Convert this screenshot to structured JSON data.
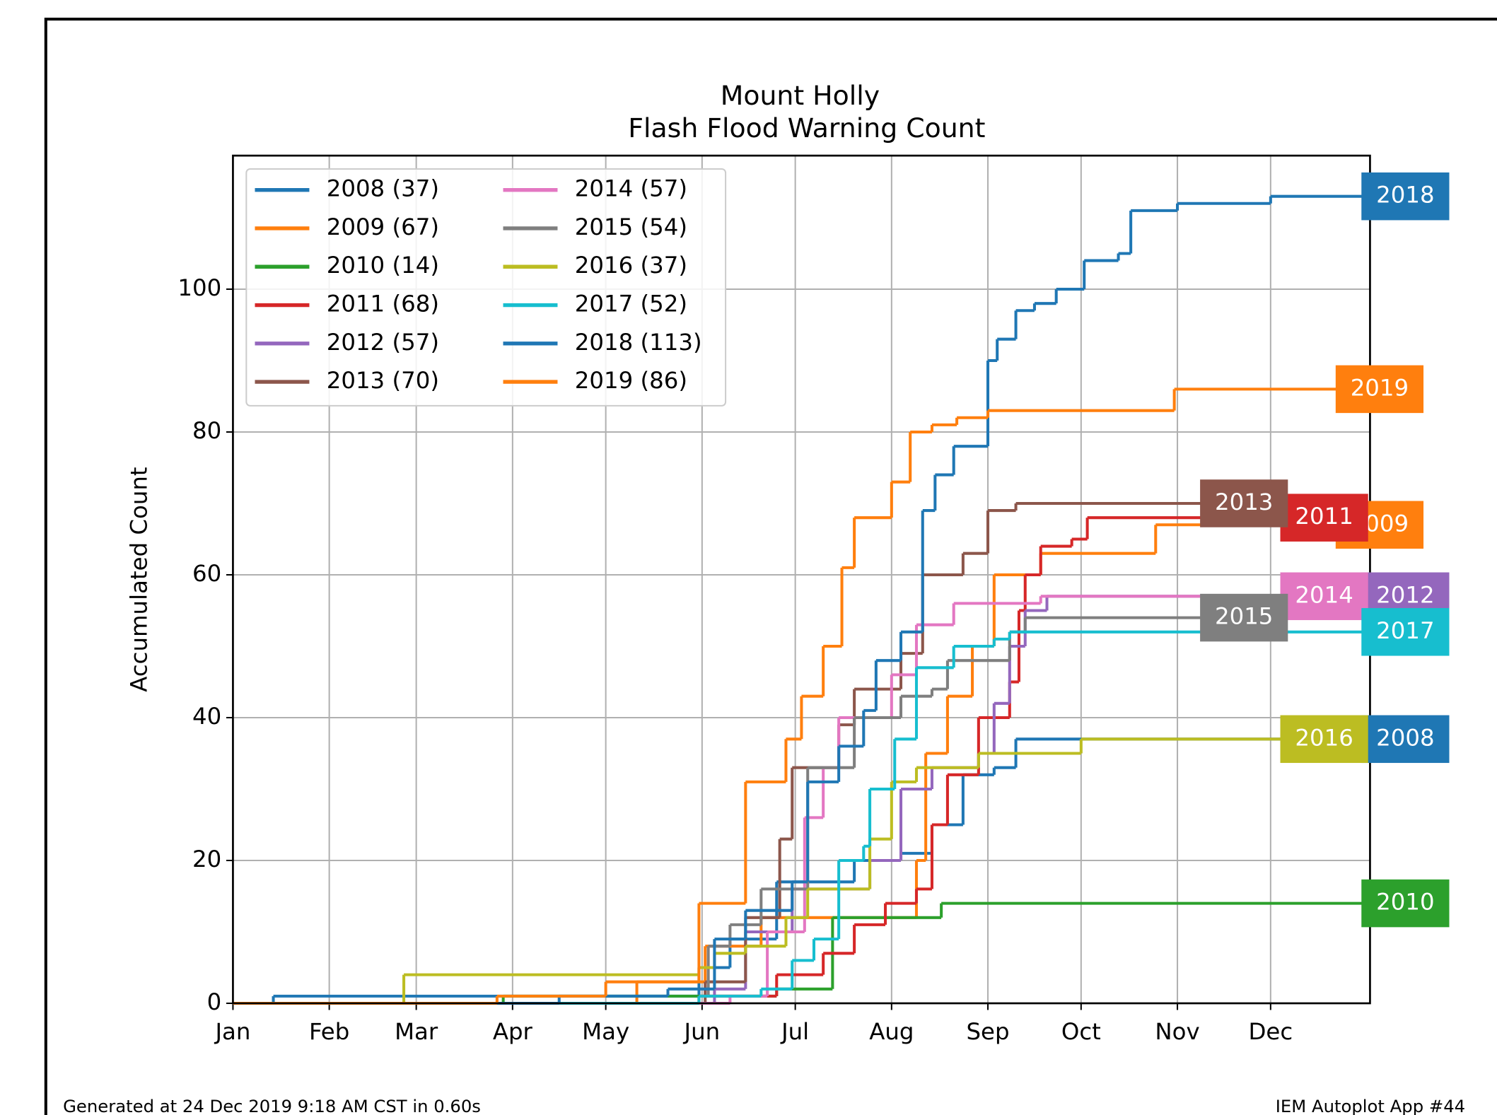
{
  "chart_data": {
    "type": "line",
    "step": true,
    "title": "Mount Holly",
    "subtitle": "Flash Flood Warning Count",
    "ylabel": "Accumulated Count",
    "footer_left": "Generated at 24 Dec 2019 9:18 AM CST in 0.60s",
    "footer_right": "IEM Autoplot App #44",
    "xlim": [
      0,
      366
    ],
    "ylim": [
      0,
      118.7
    ],
    "grid": true,
    "legend": "upper left",
    "xticks": [
      {
        "value": 0,
        "label": "Jan"
      },
      {
        "value": 31,
        "label": "Feb"
      },
      {
        "value": 59,
        "label": "Mar"
      },
      {
        "value": 90,
        "label": "Apr"
      },
      {
        "value": 120,
        "label": "May"
      },
      {
        "value": 151,
        "label": "Jun"
      },
      {
        "value": 181,
        "label": "Jul"
      },
      {
        "value": 212,
        "label": "Aug"
      },
      {
        "value": 243,
        "label": "Sep"
      },
      {
        "value": 273,
        "label": "Oct"
      },
      {
        "value": 304,
        "label": "Nov"
      },
      {
        "value": 334,
        "label": "Dec"
      }
    ],
    "yticks": [
      0,
      20,
      40,
      60,
      80,
      100
    ],
    "series": [
      {
        "name": "2008 (37)",
        "end_label": "2008",
        "color": "#1f77b4",
        "x": [
          13,
          150,
          160,
          175,
          200,
          215,
          225,
          235,
          245,
          252
        ],
        "values": [
          1,
          5,
          9,
          17,
          20,
          21,
          25,
          32,
          33,
          37
        ]
      },
      {
        "name": "2009 (67)",
        "end_label": "2009",
        "color": "#ff7f0e",
        "x": [
          130,
          152,
          170,
          200,
          220,
          223,
          230,
          238,
          245,
          260,
          297
        ],
        "values": [
          3,
          8,
          12,
          12,
          20,
          35,
          43,
          50,
          60,
          63,
          67
        ]
      },
      {
        "name": "2010 (14)",
        "end_label": "2010",
        "color": "#2ca02c",
        "x": [
          87,
          155,
          175,
          193,
          228
        ],
        "values": [
          1,
          1,
          2,
          12,
          14
        ]
      },
      {
        "name": "2011 (68)",
        "end_label": "2011",
        "color": "#d62728",
        "x": [
          150,
          175,
          190,
          200,
          210,
          220,
          225,
          230,
          240,
          250,
          253,
          255,
          260,
          270,
          275
        ],
        "values": [
          1,
          4,
          7,
          11,
          14,
          16,
          25,
          32,
          40,
          45,
          55,
          60,
          64,
          65,
          68
        ]
      },
      {
        "name": "2012 (57)",
        "end_label": "2012",
        "color": "#9467bd",
        "x": [
          155,
          165,
          180,
          205,
          215,
          225,
          240,
          245,
          250,
          255,
          262
        ],
        "values": [
          2,
          10,
          16,
          20,
          30,
          33,
          35,
          42,
          50,
          55,
          57
        ]
      },
      {
        "name": "2013 (70)",
        "end_label": "2013",
        "color": "#8c564b",
        "x": [
          152,
          165,
          176,
          180,
          195,
          200,
          215,
          222,
          235,
          243,
          252
        ],
        "values": [
          3,
          12,
          23,
          33,
          39,
          44,
          49,
          60,
          63,
          69,
          70
        ]
      },
      {
        "name": "2014 (57)",
        "end_label": "2014",
        "color": "#e377c2",
        "x": [
          160,
          172,
          184,
          190,
          195,
          212,
          220,
          232,
          260
        ],
        "values": [
          1,
          10,
          26,
          33,
          40,
          46,
          53,
          56,
          57
        ]
      },
      {
        "name": "2015 (54)",
        "end_label": "2015",
        "color": "#7f7f7f",
        "x": [
          150,
          153,
          160,
          170,
          185,
          200,
          215,
          225,
          230,
          250,
          255
        ],
        "values": [
          1,
          8,
          11,
          16,
          33,
          40,
          43,
          44,
          48,
          52,
          54
        ]
      },
      {
        "name": "2016 (37)",
        "end_label": "2016",
        "color": "#bcbd22",
        "x": [
          55,
          150,
          155,
          165,
          178,
          185,
          205,
          212,
          220,
          240,
          273
        ],
        "values": [
          4,
          5,
          7,
          8,
          12,
          16,
          23,
          31,
          33,
          35,
          37
        ]
      },
      {
        "name": "2017 (52)",
        "end_label": "2017",
        "color": "#17becf",
        "x": [
          150,
          170,
          180,
          187,
          195,
          203,
          205,
          213,
          220,
          232,
          245,
          250
        ],
        "values": [
          1,
          2,
          6,
          9,
          20,
          22,
          30,
          37,
          47,
          50,
          51,
          52
        ]
      },
      {
        "name": "2018 (113)",
        "end_label": "2018",
        "color": "#1f77b4",
        "x": [
          105,
          140,
          155,
          165,
          180,
          185,
          195,
          203,
          207,
          215,
          222,
          226,
          232,
          243,
          246,
          252,
          258,
          265,
          274,
          285,
          289,
          304,
          334
        ],
        "values": [
          1,
          2,
          9,
          13,
          17,
          31,
          36,
          41,
          48,
          52,
          69,
          74,
          78,
          90,
          93,
          97,
          98,
          100,
          104,
          105,
          111,
          112,
          113
        ]
      },
      {
        "name": "2019 (86)",
        "end_label": "2019",
        "color": "#ff7f0e",
        "x": [
          85,
          120,
          150,
          165,
          178,
          183,
          190,
          196,
          200,
          212,
          218,
          225,
          233,
          243,
          303
        ],
        "values": [
          1,
          3,
          14,
          31,
          37,
          43,
          50,
          61,
          68,
          73,
          80,
          81,
          82,
          83,
          86
        ]
      }
    ]
  }
}
